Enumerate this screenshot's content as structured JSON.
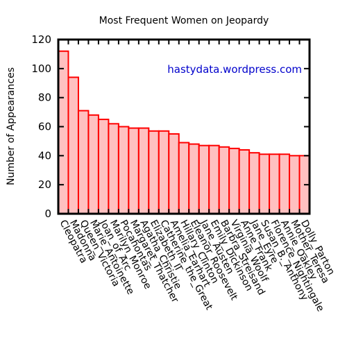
{
  "chart_data": {
    "type": "bar",
    "title": "Most Frequent Women on Jeopardy",
    "xlabel": "",
    "ylabel": "Number of Appearances",
    "ylim": [
      0,
      120
    ],
    "yticks": [
      0,
      20,
      40,
      60,
      80,
      100,
      120
    ],
    "annotation": "hastydata.wordpress.com",
    "categories": [
      "Cleopatra",
      "Madonna",
      "Queen_Victoria",
      "Marie_Antoinette",
      "Joan_of_Arc",
      "Marilyn_Monroe",
      "Pocahontas",
      "Margaret_Thatcher",
      "Agatha_Christie",
      "Elizabeth_II",
      "Catherine_the_Great",
      "Amelia_Earhart",
      "Hillary_Clinton",
      "Eleanor_Roosevelt",
      "Jane_Austen",
      "Emily_Dickinson",
      "Barbra_Streisand",
      "Virginia_Woolf",
      "Anne_Frank",
      "Jane_Eyre",
      "Susan_B._Anthony",
      "Florence_Nightingale",
      "Annie_Oakley",
      "Mother_Teresa",
      "Dolly_Parton"
    ],
    "values": [
      112,
      94,
      71,
      68,
      65,
      62,
      60,
      59,
      59,
      57,
      57,
      55,
      49,
      48,
      47,
      47,
      46,
      45,
      44,
      42,
      41,
      41,
      41,
      40,
      40
    ],
    "colors": {
      "fill": "#ffc0c0",
      "edge": "#ff0000",
      "annotation": "#0000cc",
      "axis": "#000000"
    }
  }
}
